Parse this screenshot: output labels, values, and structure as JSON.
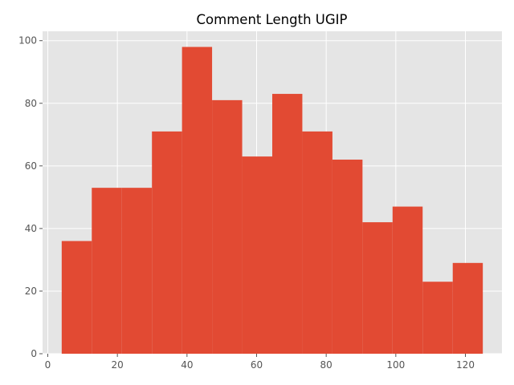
{
  "chart_data": {
    "type": "bar",
    "subtype": "histogram",
    "title": "Comment Length  UGIP",
    "xlabel": "",
    "ylabel": "",
    "bin_edges": [
      4.0,
      12.64,
      21.29,
      29.93,
      38.57,
      47.21,
      55.86,
      64.5,
      73.14,
      81.79,
      90.43,
      99.07,
      107.71,
      116.36,
      125.0
    ],
    "values": [
      36,
      53,
      53,
      71,
      98,
      81,
      63,
      83,
      71,
      62,
      42,
      47,
      23,
      29
    ],
    "xlim": [
      -1.5,
      130.5
    ],
    "ylim": [
      0,
      103
    ],
    "xticks": [
      0,
      20,
      40,
      60,
      80,
      100,
      120
    ],
    "yticks": [
      0,
      20,
      40,
      60,
      80,
      100
    ],
    "grid": true,
    "colors": {
      "bar": "#E24A33",
      "plot_background": "#E5E5E5",
      "grid": "#FFFFFF",
      "text": "#555555"
    }
  }
}
